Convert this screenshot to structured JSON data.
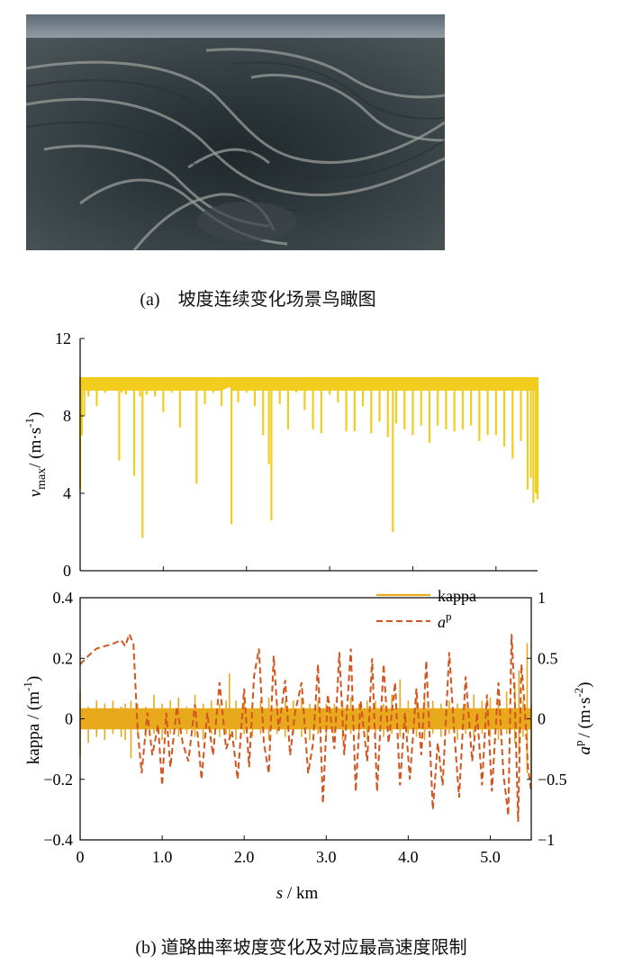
{
  "caption_a": "(a)　坡度连续变化场景鸟瞰图",
  "caption_b": "(b)  道路曲率坡度变化及对应最高速度限制",
  "colors": {
    "vmax": "#f2cd1f",
    "kappa": "#e8a91c",
    "ap": "#d2551f",
    "axis": "#111111"
  },
  "chart_data": [
    {
      "type": "area",
      "ylabel": "v_max / (m·s^-1)",
      "ylabel_parts": {
        "v": "v",
        "sub": "max",
        "unit": "/ (m·s",
        "exp": "-1",
        "close": ")"
      },
      "xlim": [
        0,
        5.5
      ],
      "ylim": [
        0,
        12
      ],
      "yticks": [
        0,
        4,
        8,
        12
      ],
      "ytick_labels": [
        "0",
        "4",
        "8",
        "12"
      ],
      "xticks": [
        0,
        1,
        2,
        3,
        4,
        5
      ],
      "series": [
        {
          "x": [
            0,
            0.02,
            0.05,
            0.1,
            0.2,
            0.3,
            0.4,
            0.47,
            0.5,
            0.55,
            0.6,
            0.65,
            0.72,
            0.75,
            0.8,
            0.9,
            1.0,
            1.1,
            1.2,
            1.3,
            1.4,
            1.5,
            1.6,
            1.7,
            1.8,
            1.82,
            1.85,
            1.9,
            2.0,
            2.1,
            2.2,
            2.27,
            2.3,
            2.4,
            2.5,
            2.6,
            2.7,
            2.8,
            2.9,
            3.0,
            3.1,
            3.2,
            3.3,
            3.4,
            3.5,
            3.6,
            3.7,
            3.76,
            3.8,
            3.9,
            4.0,
            4.1,
            4.2,
            4.3,
            4.4,
            4.5,
            4.6,
            4.7,
            4.8,
            4.9,
            5.0,
            5.1,
            5.2,
            5.3,
            5.38,
            5.42,
            5.45,
            5.48,
            5.5
          ],
          "values": [
            4.2,
            7,
            8,
            9,
            8.5,
            9.2,
            9.3,
            5.7,
            9.2,
            9.1,
            9.3,
            4.9,
            9.0,
            1.7,
            9.1,
            9.0,
            8.2,
            9.2,
            7.4,
            9.3,
            4.5,
            8.6,
            9.2,
            8.5,
            9.5,
            2.4,
            9.3,
            8.7,
            9.2,
            8.5,
            7.0,
            5.5,
            2.6,
            8.6,
            7.3,
            9.2,
            8.3,
            7.3,
            7.1,
            9.1,
            8.7,
            7.2,
            7.2,
            8.5,
            7.1,
            7.7,
            6.9,
            2.0,
            7.6,
            7.3,
            7.0,
            7.5,
            6.6,
            7.5,
            7.3,
            7.2,
            7.3,
            7.5,
            6.7,
            7.0,
            7.0,
            6.4,
            5.8,
            6.7,
            4.2,
            4.8,
            3.5,
            4.0,
            3.7
          ]
        }
      ]
    },
    {
      "type": "line",
      "xlabel": "s / km",
      "ylabel": "kappa / (m^-1)",
      "ylabel_parts": {
        "text": "kappa / (m",
        "exp": "-1",
        "close": ")"
      },
      "y2label": "a^p / (m·s^-2)",
      "y2label_parts": {
        "a": "a",
        "sup": "p",
        "unit": "/ (m·s",
        "exp": "-2",
        "close": ")"
      },
      "xlim": [
        0,
        5.5
      ],
      "ylim": [
        -0.4,
        0.4
      ],
      "y2lim": [
        -1,
        1
      ],
      "xticks": [
        0,
        1,
        2,
        3,
        4,
        5
      ],
      "xtick_labels": [
        "0",
        "1.0",
        "2.0",
        "3.0",
        "4.0",
        "5.0"
      ],
      "yticks": [
        -0.4,
        -0.2,
        0,
        0.2,
        0.4
      ],
      "ytick_labels": [
        "−0.4",
        "−0.2",
        "0",
        "0.2",
        "0.4"
      ],
      "y2ticks": [
        -1,
        -0.5,
        0,
        0.5,
        1
      ],
      "y2tick_labels": [
        "−1",
        "−0.5",
        "0",
        "0.5",
        "1"
      ],
      "legend": {
        "placement": "top-right",
        "entries": [
          "kappa",
          "a^p"
        ],
        "kappa_label": "kappa",
        "ap_label": "a",
        "ap_sup": "p"
      },
      "series": [
        {
          "name": "kappa",
          "axis": "left",
          "x": [
            0,
            0.1,
            0.2,
            0.3,
            0.4,
            0.5,
            0.55,
            0.62,
            0.7,
            0.8,
            0.9,
            1.0,
            1.1,
            1.2,
            1.3,
            1.4,
            1.5,
            1.6,
            1.7,
            1.78,
            1.82,
            1.9,
            2.0,
            2.1,
            2.2,
            2.3,
            2.4,
            2.5,
            2.6,
            2.7,
            2.8,
            2.9,
            3.0,
            3.1,
            3.2,
            3.3,
            3.4,
            3.5,
            3.6,
            3.7,
            3.8,
            3.9,
            4.0,
            4.1,
            4.2,
            4.3,
            4.4,
            4.5,
            4.6,
            4.7,
            4.8,
            4.9,
            5.0,
            5.1,
            5.2,
            5.3,
            5.35,
            5.4,
            5.45,
            5.5
          ],
          "values_high": [
            0.09,
            0.04,
            0.06,
            0.05,
            0.06,
            0.04,
            0.05,
            0.06,
            0.05,
            0.04,
            0.08,
            0.05,
            0.06,
            0.07,
            0.04,
            0.08,
            0.05,
            0.06,
            0.05,
            0.06,
            0.15,
            0.06,
            0.07,
            0.04,
            0.06,
            0.07,
            0.05,
            0.06,
            0.06,
            0.07,
            0.05,
            0.06,
            0.05,
            0.05,
            0.06,
            0.07,
            0.05,
            0.06,
            0.06,
            0.05,
            0.08,
            0.13,
            0.06,
            0.07,
            0.08,
            0.06,
            0.05,
            0.06,
            0.05,
            0.05,
            0.08,
            0.06,
            0.07,
            0.06,
            0.09,
            0.12,
            0.16,
            0.06,
            0.25,
            0.05
          ],
          "values_low": [
            -0.12,
            -0.08,
            -0.06,
            -0.07,
            -0.05,
            -0.06,
            -0.07,
            -0.13,
            -0.05,
            -0.06,
            -0.05,
            -0.07,
            -0.05,
            -0.06,
            -0.05,
            -0.06,
            -0.07,
            -0.05,
            -0.06,
            -0.05,
            -0.06,
            -0.07,
            -0.05,
            -0.06,
            -0.05,
            -0.07,
            -0.05,
            -0.06,
            -0.05,
            -0.06,
            -0.07,
            -0.05,
            -0.06,
            -0.05,
            -0.07,
            -0.05,
            -0.06,
            -0.07,
            -0.05,
            -0.06,
            -0.05,
            -0.06,
            -0.05,
            -0.06,
            -0.07,
            -0.05,
            -0.06,
            -0.05,
            -0.07,
            -0.05,
            -0.06,
            -0.05,
            -0.06,
            -0.07,
            -0.05,
            -0.08,
            -0.12,
            -0.06,
            -0.18,
            -0.2
          ]
        },
        {
          "name": "a^p",
          "axis": "right",
          "x": [
            0,
            0.1,
            0.2,
            0.3,
            0.4,
            0.5,
            0.55,
            0.6,
            0.65,
            0.7,
            0.75,
            0.82,
            0.88,
            0.95,
            1.0,
            1.05,
            1.1,
            1.18,
            1.25,
            1.32,
            1.4,
            1.48,
            1.55,
            1.62,
            1.7,
            1.78,
            1.85,
            1.92,
            2.0,
            2.06,
            2.12,
            2.18,
            2.24,
            2.3,
            2.36,
            2.42,
            2.5,
            2.56,
            2.62,
            2.7,
            2.78,
            2.84,
            2.9,
            2.96,
            3.02,
            3.1,
            3.16,
            3.22,
            3.3,
            3.36,
            3.42,
            3.5,
            3.56,
            3.62,
            3.7,
            3.76,
            3.84,
            3.9,
            3.96,
            4.02,
            4.1,
            4.16,
            4.22,
            4.3,
            4.36,
            4.42,
            4.5,
            4.56,
            4.62,
            4.7,
            4.78,
            4.84,
            4.9,
            4.96,
            5.02,
            5.1,
            5.16,
            5.22,
            5.26,
            5.3,
            5.34,
            5.38,
            5.42,
            5.46,
            5.5
          ],
          "values": [
            0.45,
            0.52,
            0.58,
            0.6,
            0.62,
            0.65,
            0.6,
            0.7,
            0.62,
            -0.08,
            -0.45,
            0.05,
            -0.3,
            -0.05,
            -0.55,
            0.05,
            -0.4,
            0.1,
            -0.2,
            -0.35,
            0.12,
            -0.5,
            0.05,
            -0.3,
            0.3,
            -0.25,
            -0.1,
            -0.5,
            0.25,
            -0.4,
            0.35,
            0.58,
            -0.2,
            -0.45,
            0.52,
            -0.1,
            0.32,
            -0.3,
            0.05,
            0.3,
            -0.45,
            -0.2,
            0.45,
            -0.7,
            0.2,
            -0.25,
            0.55,
            -0.3,
            0.58,
            -0.6,
            0.15,
            -0.35,
            0.5,
            -0.6,
            0.45,
            -0.2,
            0.3,
            -0.55,
            0.05,
            -0.5,
            0.25,
            -0.3,
            0.48,
            -0.75,
            -0.2,
            -0.55,
            0.55,
            -0.1,
            -0.65,
            0.35,
            -0.35,
            0.05,
            -0.55,
            0.2,
            -0.6,
            0.3,
            -0.45,
            -0.8,
            0.7,
            0.15,
            -0.85,
            0.45,
            0.1,
            -0.4,
            -0.6
          ]
        }
      ]
    }
  ]
}
